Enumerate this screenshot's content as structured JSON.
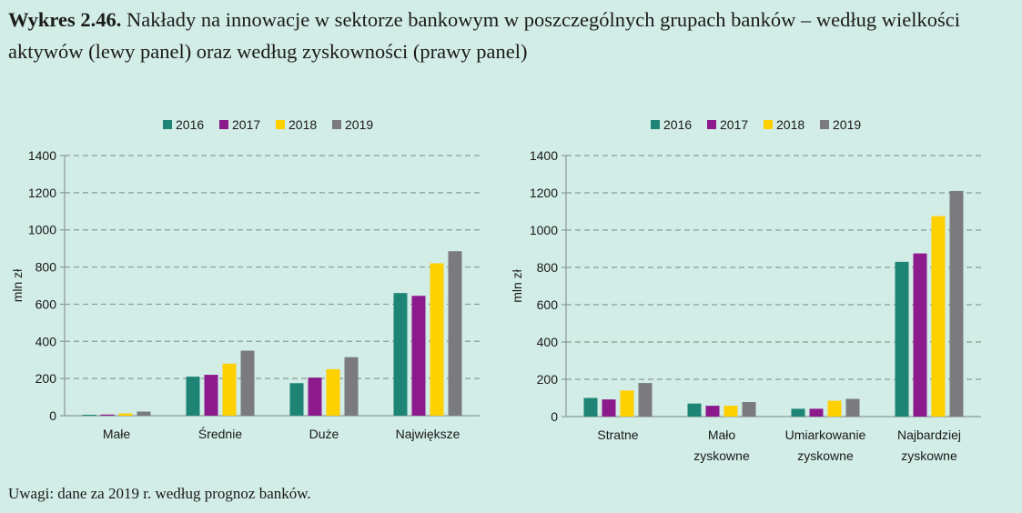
{
  "figure": {
    "title_number": "Wykres 2.46.",
    "title_text": "Nakłady na innowacje w sektorze bankowym w poszczególnych grupach banków – według wielkości aktywów (lewy panel) oraz według zyskowności (prawy panel)",
    "note": "Uwagi: dane za 2019 r. według prognoz banków."
  },
  "colors": {
    "2016": "#1e8576",
    "2017": "#8c1a8c",
    "2018": "#ffd000",
    "2019": "#7b7b7d"
  },
  "chart_data": [
    {
      "type": "bar",
      "ylabel": "mln zł",
      "ylim": [
        0,
        1400
      ],
      "yticks": [
        "0",
        "200",
        "400",
        "600",
        "800",
        "1000",
        "1200",
        "1400"
      ],
      "legend_position": "top",
      "grid": true,
      "categories": [
        [
          "Małe"
        ],
        [
          "Średnie"
        ],
        [
          "Duże"
        ],
        [
          "Największe"
        ]
      ],
      "series": [
        {
          "name": "2016",
          "values": [
            5,
            210,
            175,
            660
          ]
        },
        {
          "name": "2017",
          "values": [
            6,
            220,
            205,
            645
          ]
        },
        {
          "name": "2018",
          "values": [
            12,
            280,
            250,
            820
          ]
        },
        {
          "name": "2019",
          "values": [
            22,
            350,
            315,
            885
          ]
        }
      ]
    },
    {
      "type": "bar",
      "ylabel": "mln zł",
      "ylim": [
        0,
        1400
      ],
      "yticks": [
        "0",
        "200",
        "400",
        "600",
        "800",
        "1000",
        "1200",
        "1400"
      ],
      "legend_position": "top",
      "grid": true,
      "categories": [
        [
          "Stratne"
        ],
        [
          "Mało",
          "zyskowne"
        ],
        [
          "Umiarkowanie",
          "zyskowne"
        ],
        [
          "Najbardziej",
          "zyskowne"
        ]
      ],
      "series": [
        {
          "name": "2016",
          "values": [
            100,
            70,
            42,
            830
          ]
        },
        {
          "name": "2017",
          "values": [
            92,
            58,
            42,
            875
          ]
        },
        {
          "name": "2018",
          "values": [
            140,
            58,
            85,
            1075
          ]
        },
        {
          "name": "2019",
          "values": [
            180,
            78,
            95,
            1210
          ]
        }
      ]
    }
  ]
}
